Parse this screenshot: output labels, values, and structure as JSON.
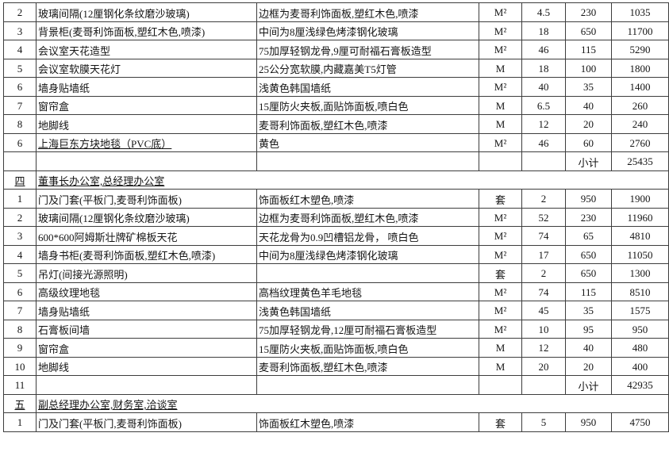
{
  "page": {
    "background_color": "#ffffff",
    "border_color": "#3d3d3d",
    "text_color": "#141414"
  },
  "table": {
    "subtotal_label": "小计",
    "rows": [
      {
        "type": "item",
        "no": "2",
        "item": "玻璃间隔(12厘钢化条纹磨沙玻璃)",
        "desc": "边框为麦哥利饰面板,塑红木色,喷漆",
        "unit": "M²",
        "qty": "4.5",
        "price": "230",
        "total": "1035"
      },
      {
        "type": "item",
        "no": "3",
        "item": "背景柜(麦哥利饰面板,塑红木色,喷漆)",
        "desc": "中间为8厘浅绿色烤漆钢化玻璃",
        "unit": "M²",
        "qty": "18",
        "price": "650",
        "total": "11700"
      },
      {
        "type": "item",
        "no": "4",
        "item": "会议室天花造型",
        "desc": "75加厚轻钢龙骨,9厘可耐福石膏板造型",
        "unit": "M²",
        "qty": "46",
        "price": "115",
        "total": "5290"
      },
      {
        "type": "item",
        "no": "5",
        "item": "会议室软膜天花灯",
        "desc": "25公分宽软膜,内藏嘉美T5灯管",
        "unit": "M",
        "qty": "18",
        "price": "100",
        "total": "1800"
      },
      {
        "type": "item",
        "no": "6",
        "item": "墙身贴墙纸",
        "desc": "浅黄色韩国墙纸",
        "unit": "M²",
        "qty": "40",
        "price": "35",
        "total": "1400"
      },
      {
        "type": "item",
        "no": "7",
        "item": "窗帘盒",
        "desc": "15厘防火夹板,面贴饰面板,喷白色",
        "unit": "M",
        "qty": "6.5",
        "price": "40",
        "total": "260"
      },
      {
        "type": "item",
        "no": "8",
        "item": "地脚线",
        "desc": "麦哥利饰面板,塑红木色,喷漆",
        "unit": "M",
        "qty": "12",
        "price": "20",
        "total": "240"
      },
      {
        "type": "item",
        "no": "6",
        "item": "上海巨东方块地毯（PVC底）",
        "desc": "黄色",
        "unit": "M²",
        "qty": "46",
        "price": "60",
        "total": "2760",
        "underline_item": true
      },
      {
        "type": "subtotal",
        "no": "",
        "label": "小计",
        "total": "25435"
      },
      {
        "type": "section",
        "no": "四",
        "title": "董事长办公室,总经理办公室"
      },
      {
        "type": "item",
        "no": "1",
        "item": "门及门套(平板门,麦哥利饰面板)",
        "desc": "饰面板红木塑色,喷漆",
        "unit": "套",
        "qty": "2",
        "price": "950",
        "total": "1900"
      },
      {
        "type": "item",
        "no": "2",
        "item": "玻璃间隔(12厘钢化条纹磨沙玻璃)",
        "desc": "边框为麦哥利饰面板,塑红木色,喷漆",
        "unit": "M²",
        "qty": "52",
        "price": "230",
        "total": "11960"
      },
      {
        "type": "item",
        "no": "3",
        "item": "600*600阿姆斯壮牌矿棉板天花",
        "desc": "天花龙骨为0.9凹槽铝龙骨， 喷白色",
        "unit": "M²",
        "qty": "74",
        "price": "65",
        "total": "4810"
      },
      {
        "type": "item",
        "no": "4",
        "item": "墙身书柜(麦哥利饰面板,塑红木色,喷漆)",
        "desc": "中间为8厘浅绿色烤漆钢化玻璃",
        "unit": "M²",
        "qty": "17",
        "price": "650",
        "total": "11050"
      },
      {
        "type": "item",
        "no": "5",
        "item": "吊灯(间接光源照明)",
        "desc": "",
        "unit": "套",
        "qty": "2",
        "price": "650",
        "total": "1300"
      },
      {
        "type": "item",
        "no": "6",
        "item": "高级纹理地毯",
        "desc": "高档纹理黄色羊毛地毯",
        "unit": "M²",
        "qty": "74",
        "price": "115",
        "total": "8510"
      },
      {
        "type": "item",
        "no": "7",
        "item": "墙身贴墙纸",
        "desc": "浅黄色韩国墙纸",
        "unit": "M²",
        "qty": "45",
        "price": "35",
        "total": "1575"
      },
      {
        "type": "item",
        "no": "8",
        "item": "石膏板间墙",
        "desc": "75加厚轻钢龙骨,12厘可耐福石膏板造型",
        "unit": "M²",
        "qty": "10",
        "price": "95",
        "total": "950"
      },
      {
        "type": "item",
        "no": "9",
        "item": "窗帘盒",
        "desc": "15厘防火夹板,面贴饰面板,喷白色",
        "unit": "M",
        "qty": "12",
        "price": "40",
        "total": "480"
      },
      {
        "type": "item",
        "no": "10",
        "item": "地脚线",
        "desc": "麦哥利饰面板,塑红木色,喷漆",
        "unit": "M",
        "qty": "20",
        "price": "20",
        "total": "400"
      },
      {
        "type": "subtotal",
        "no": "11",
        "label": "小计",
        "total": "42935"
      },
      {
        "type": "section",
        "no": "五",
        "title": "副总经理办公室,财务室,洽谈室"
      },
      {
        "type": "item",
        "no": "1",
        "item": "门及门套(平板门,麦哥利饰面板)",
        "desc": "饰面板红木塑色,喷漆",
        "unit": "套",
        "qty": "5",
        "price": "950",
        "total": "4750"
      }
    ]
  }
}
